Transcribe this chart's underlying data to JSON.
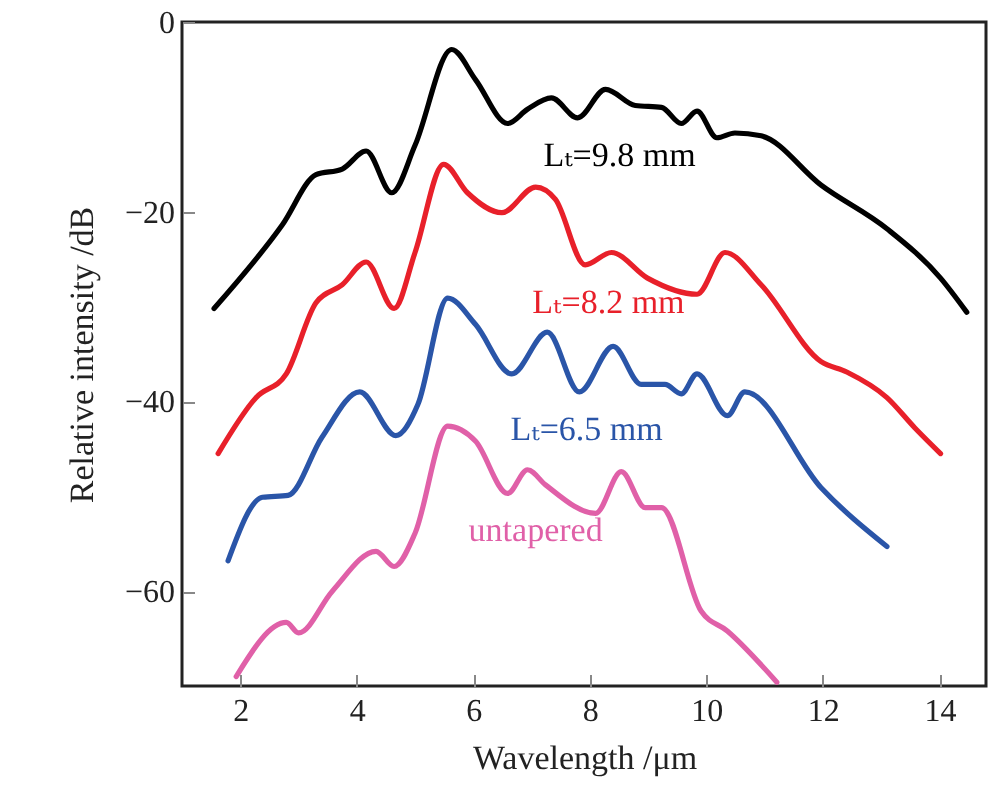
{
  "chart_data": {
    "type": "line",
    "xlabel": "Wavelength /μm",
    "ylabel": "Relative intensity /dB",
    "xlim": [
      1,
      14.8
    ],
    "ylim": [
      -70,
      0
    ],
    "xticks": [
      2,
      4,
      6,
      8,
      10,
      12,
      14
    ],
    "yticks": [
      0,
      -20,
      -40,
      -60
    ],
    "grid": false,
    "line_style": "solid",
    "marker": "none",
    "series": [
      {
        "name": "Lₜ=9.8 mm",
        "color": "#000000",
        "x": [
          1.55,
          2.72,
          3.3,
          3.75,
          4.16,
          4.6,
          5.0,
          5.63,
          6.04,
          6.59,
          6.93,
          7.34,
          7.79,
          8.27,
          8.78,
          9.23,
          9.57,
          9.84,
          10.18,
          10.49,
          10.94,
          11.97,
          13.1,
          14.02,
          14.47
        ],
        "values": [
          -30.2,
          -21.4,
          -16.1,
          -15.5,
          -13.6,
          -18.0,
          -13.0,
          -2.9,
          -6.1,
          -10.7,
          -9.2,
          -8.0,
          -10.1,
          -7.1,
          -8.8,
          -9.0,
          -10.7,
          -9.4,
          -12.2,
          -11.7,
          -12.0,
          -17.2,
          -21.8,
          -27.0,
          -30.6
        ]
      },
      {
        "name": "Lₜ=8.2 mm",
        "color": "#e8202a",
        "x": [
          1.62,
          2.27,
          2.79,
          3.3,
          3.75,
          4.16,
          4.64,
          5.0,
          5.49,
          5.9,
          6.49,
          7.07,
          7.41,
          7.92,
          8.37,
          8.99,
          9.84,
          10.32,
          10.94,
          11.97,
          12.41,
          13.1,
          13.58,
          14.02
        ],
        "values": [
          -45.5,
          -39.6,
          -37.1,
          -29.6,
          -27.7,
          -25.3,
          -30.2,
          -24.3,
          -15.0,
          -18.0,
          -20.1,
          -17.4,
          -18.7,
          -25.6,
          -24.3,
          -27.0,
          -28.7,
          -24.3,
          -27.7,
          -35.8,
          -36.9,
          -39.6,
          -42.8,
          -45.5
        ]
      },
      {
        "name": "Lₜ=6.5 mm",
        "color": "#2a55a8",
        "x": [
          1.79,
          2.38,
          2.82,
          3.4,
          4.05,
          4.67,
          5.05,
          5.56,
          6.04,
          6.66,
          7.27,
          7.82,
          8.4,
          8.88,
          9.29,
          9.57,
          9.84,
          10.36,
          10.66,
          11.97,
          13.1
        ],
        "values": [
          -56.8,
          -50.1,
          -49.9,
          -43.8,
          -39.0,
          -43.6,
          -40.3,
          -29.1,
          -31.9,
          -37.1,
          -32.7,
          -39.0,
          -34.2,
          -38.2,
          -38.2,
          -39.2,
          -37.1,
          -41.5,
          -39.0,
          -49.1,
          -55.3
        ]
      },
      {
        "name": "untapered",
        "color": "#e060a8",
        "x": [
          1.93,
          2.79,
          3.0,
          3.58,
          4.33,
          4.64,
          5.0,
          5.56,
          6.04,
          6.59,
          6.93,
          7.24,
          8.1,
          8.54,
          8.95,
          9.23,
          9.91,
          10.36,
          11.21
        ],
        "values": [
          -69.0,
          -63.3,
          -64.4,
          -60.0,
          -55.8,
          -57.4,
          -53.9,
          -42.6,
          -44.2,
          -49.7,
          -47.2,
          -48.8,
          -51.8,
          -47.4,
          -51.2,
          -51.2,
          -62.1,
          -64.2,
          -69.6
        ]
      }
    ]
  }
}
